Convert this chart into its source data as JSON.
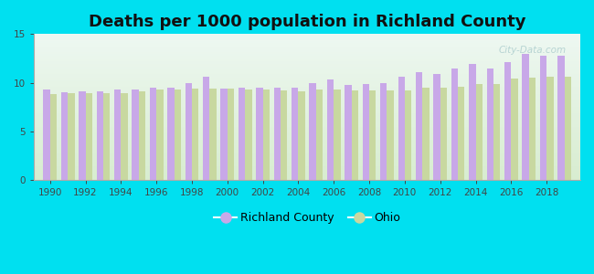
{
  "title": "Deaths per 1000 population in Richland County",
  "years": [
    1990,
    1991,
    1992,
    1993,
    1994,
    1995,
    1996,
    1997,
    1998,
    1999,
    2000,
    2001,
    2002,
    2003,
    2004,
    2005,
    2006,
    2007,
    2008,
    2009,
    2010,
    2011,
    2012,
    2013,
    2014,
    2015,
    2016,
    2017,
    2018,
    2019
  ],
  "richland": [
    9.3,
    9.0,
    9.1,
    9.1,
    9.3,
    9.3,
    9.5,
    9.5,
    10.0,
    10.6,
    9.4,
    9.5,
    9.5,
    9.5,
    9.5,
    10.0,
    10.3,
    9.8,
    9.9,
    10.0,
    10.6,
    11.1,
    10.9,
    11.5,
    11.9,
    11.5,
    12.1,
    13.0,
    12.8,
    12.8
  ],
  "ohio": [
    8.8,
    8.9,
    8.9,
    8.9,
    8.9,
    9.1,
    9.3,
    9.3,
    9.4,
    9.4,
    9.4,
    9.3,
    9.3,
    9.2,
    9.1,
    9.3,
    9.3,
    9.2,
    9.2,
    9.2,
    9.2,
    9.5,
    9.5,
    9.6,
    9.9,
    9.9,
    10.4,
    10.5,
    10.6,
    10.6
  ],
  "richland_color": "#c8a8e8",
  "ohio_color": "#c8d8a0",
  "bar_width": 0.38,
  "ylim": [
    0,
    15
  ],
  "yticks": [
    0,
    5,
    10,
    15
  ],
  "xtick_years": [
    1990,
    1992,
    1994,
    1996,
    1998,
    2000,
    2002,
    2004,
    2006,
    2008,
    2010,
    2012,
    2014,
    2016,
    2018
  ],
  "background_outer": "#00e0f0",
  "background_plot_top": "#eef8f2",
  "background_plot_bottom": "#d8edd0",
  "title_fontsize": 13,
  "title_fontweight": "bold",
  "watermark": "City-Data.com",
  "fig_width": 6.5,
  "fig_height": 3.0,
  "dpi": 100
}
